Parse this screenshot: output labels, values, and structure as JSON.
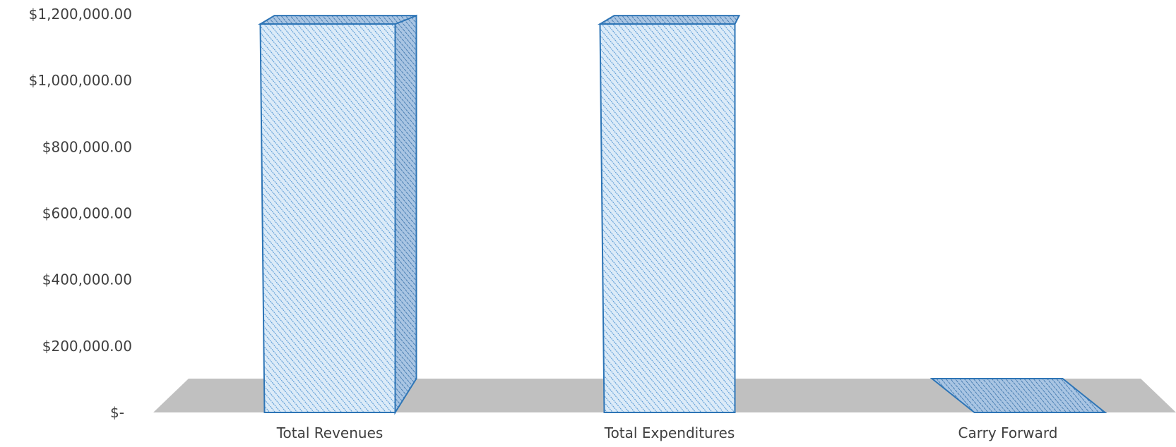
{
  "chart_data": {
    "type": "bar",
    "style": "3d-column",
    "categories": [
      "Total Revenues",
      "Total Expenditures",
      "Carry Forward"
    ],
    "values": [
      1170000,
      1170000,
      0
    ],
    "ylim": [
      0,
      1200000
    ],
    "y_ticks": [
      0,
      200000,
      400000,
      600000,
      800000,
      1000000,
      1200000
    ],
    "y_tick_labels": [
      "$-",
      "$200,000.00",
      "$400,000.00",
      "$600,000.00",
      "$800,000.00",
      "$1,000,000.00",
      "$1,200,000.00"
    ],
    "title": "",
    "xlabel": "",
    "ylabel": "",
    "grid": false,
    "legend": "none",
    "colors": {
      "bar_fill": "#dcebf8",
      "bar_hatch": "#5b9bd5",
      "bar_outline": "#2e75b6",
      "bar_side": "#8fb4d9",
      "bar_top": "#9fc0e0",
      "floor": "#c0c0c0",
      "text": "#404040"
    }
  }
}
